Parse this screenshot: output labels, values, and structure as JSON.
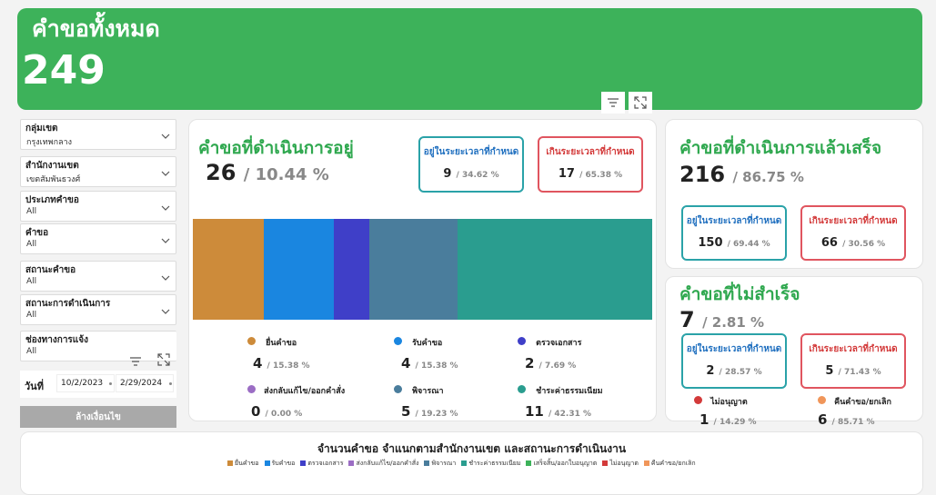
{
  "banner": {
    "title": "คำขอทั้งหมด",
    "value": "249",
    "color": "#3db25a"
  },
  "icons": {
    "filter": "filter-icon",
    "focus": "focus-mode-icon",
    "chevron": "chevron-down-icon",
    "calendar": "calendar-icon"
  },
  "filters": [
    {
      "label": "กลุ่มเขต",
      "value": "กรุงเทพกลาง"
    },
    {
      "label": "สำนักงานเขต",
      "value": "เขตสัมพันธวงศ์"
    },
    {
      "label": "ประเภทคำขอ",
      "value": "All"
    },
    {
      "label": "คำขอ",
      "value": "All"
    },
    {
      "label": "สถานะคำขอ",
      "value": "All"
    },
    {
      "label": "สถานะการดำเนินการ",
      "value": "All"
    },
    {
      "label": "ช่องทางการแจ้ง",
      "value": "All"
    }
  ],
  "date": {
    "label": "วันที่",
    "from": "10/2/2023",
    "to": "2/29/2024"
  },
  "clear_button": "ล้างเงื่อนไข",
  "in_progress": {
    "title": "คำขอที่ดำเนินการอยู่",
    "count": "26",
    "pct": "/ 10.44 %",
    "within": {
      "label": "อยู่ในระยะเวลาที่กำหนด",
      "count": "9",
      "pct": "/ 34.62 %"
    },
    "over": {
      "label": "เกินระยะเวลาที่กำหนด",
      "count": "17",
      "pct": "/ 65.38 %"
    },
    "bar": [
      {
        "name": "ยื่นคำขอ",
        "value": 4,
        "pct": "/ 15.38 %",
        "color": "#cd8b3a"
      },
      {
        "name": "รับคำขอ",
        "value": 4,
        "pct": "/ 15.38 %",
        "color": "#1a86e0"
      },
      {
        "name": "ตรวจเอกสาร",
        "value": 2,
        "pct": "/ 7.69 %",
        "color": "#3f3fc8"
      },
      {
        "name": "ส่งกลับแก้ไข/ออกคำสั่ง",
        "value": 0,
        "pct": "/ 0.00 %",
        "color": "#9b6dc4"
      },
      {
        "name": "พิจารณา",
        "value": 5,
        "pct": "/ 19.23 %",
        "color": "#4a7d9c"
      },
      {
        "name": "ชำระค่าธรรมเนียม",
        "value": 11,
        "pct": "/ 42.31 %",
        "color": "#2a9d8f"
      }
    ]
  },
  "completed": {
    "title": "คำขอที่ดำเนินการแล้วเสร็จ",
    "count": "216",
    "pct": "/ 86.75 %",
    "within": {
      "label": "อยู่ในระยะเวลาที่กำหนด",
      "count": "150",
      "pct": "/ 69.44 %"
    },
    "over": {
      "label": "เกินระยะเวลาที่กำหนด",
      "count": "66",
      "pct": "/ 30.56 %"
    }
  },
  "failed": {
    "title": "คำขอที่ไม่สำเร็จ",
    "count": "7",
    "pct": "/ 2.81 %",
    "within": {
      "label": "อยู่ในระยะเวลาที่กำหนด",
      "count": "2",
      "pct": "/ 28.57 %"
    },
    "over": {
      "label": "เกินระยะเวลาที่กำหนด",
      "count": "5",
      "pct": "/ 71.43 %"
    },
    "reasons": [
      {
        "name": "ไม่อนุญาต",
        "count": "1",
        "pct": "/ 14.29 %",
        "color": "#d33a3a"
      },
      {
        "name": "คืนคำขอ/ยกเลิก",
        "count": "6",
        "pct": "/ 85.71 %",
        "color": "#f0965a"
      }
    ]
  },
  "bottom_chart": {
    "title": "จำนวนคำขอ  จำแนกตามสำนักงานเขต และสถานะการดำเนินงาน",
    "legend": [
      {
        "name": "ยื่นคำขอ",
        "color": "#cd8b3a"
      },
      {
        "name": "รับคำขอ",
        "color": "#1a86e0"
      },
      {
        "name": "ตรวจเอกสาร",
        "color": "#3f3fc8"
      },
      {
        "name": "ส่งกลับแก้ไข/ออกคำสั่ง",
        "color": "#9b6dc4"
      },
      {
        "name": "พิจารณา",
        "color": "#4a7d9c"
      },
      {
        "name": "ชำระค่าธรรมเนียม",
        "color": "#2a9d8f"
      },
      {
        "name": "เสร็จสิ้น/ออกใบอนุญาต",
        "color": "#3db25a"
      },
      {
        "name": "ไม่อนุญาต",
        "color": "#d33a3a"
      },
      {
        "name": "คืนคำขอ/ยกเลิก",
        "color": "#f0965a"
      }
    ]
  }
}
